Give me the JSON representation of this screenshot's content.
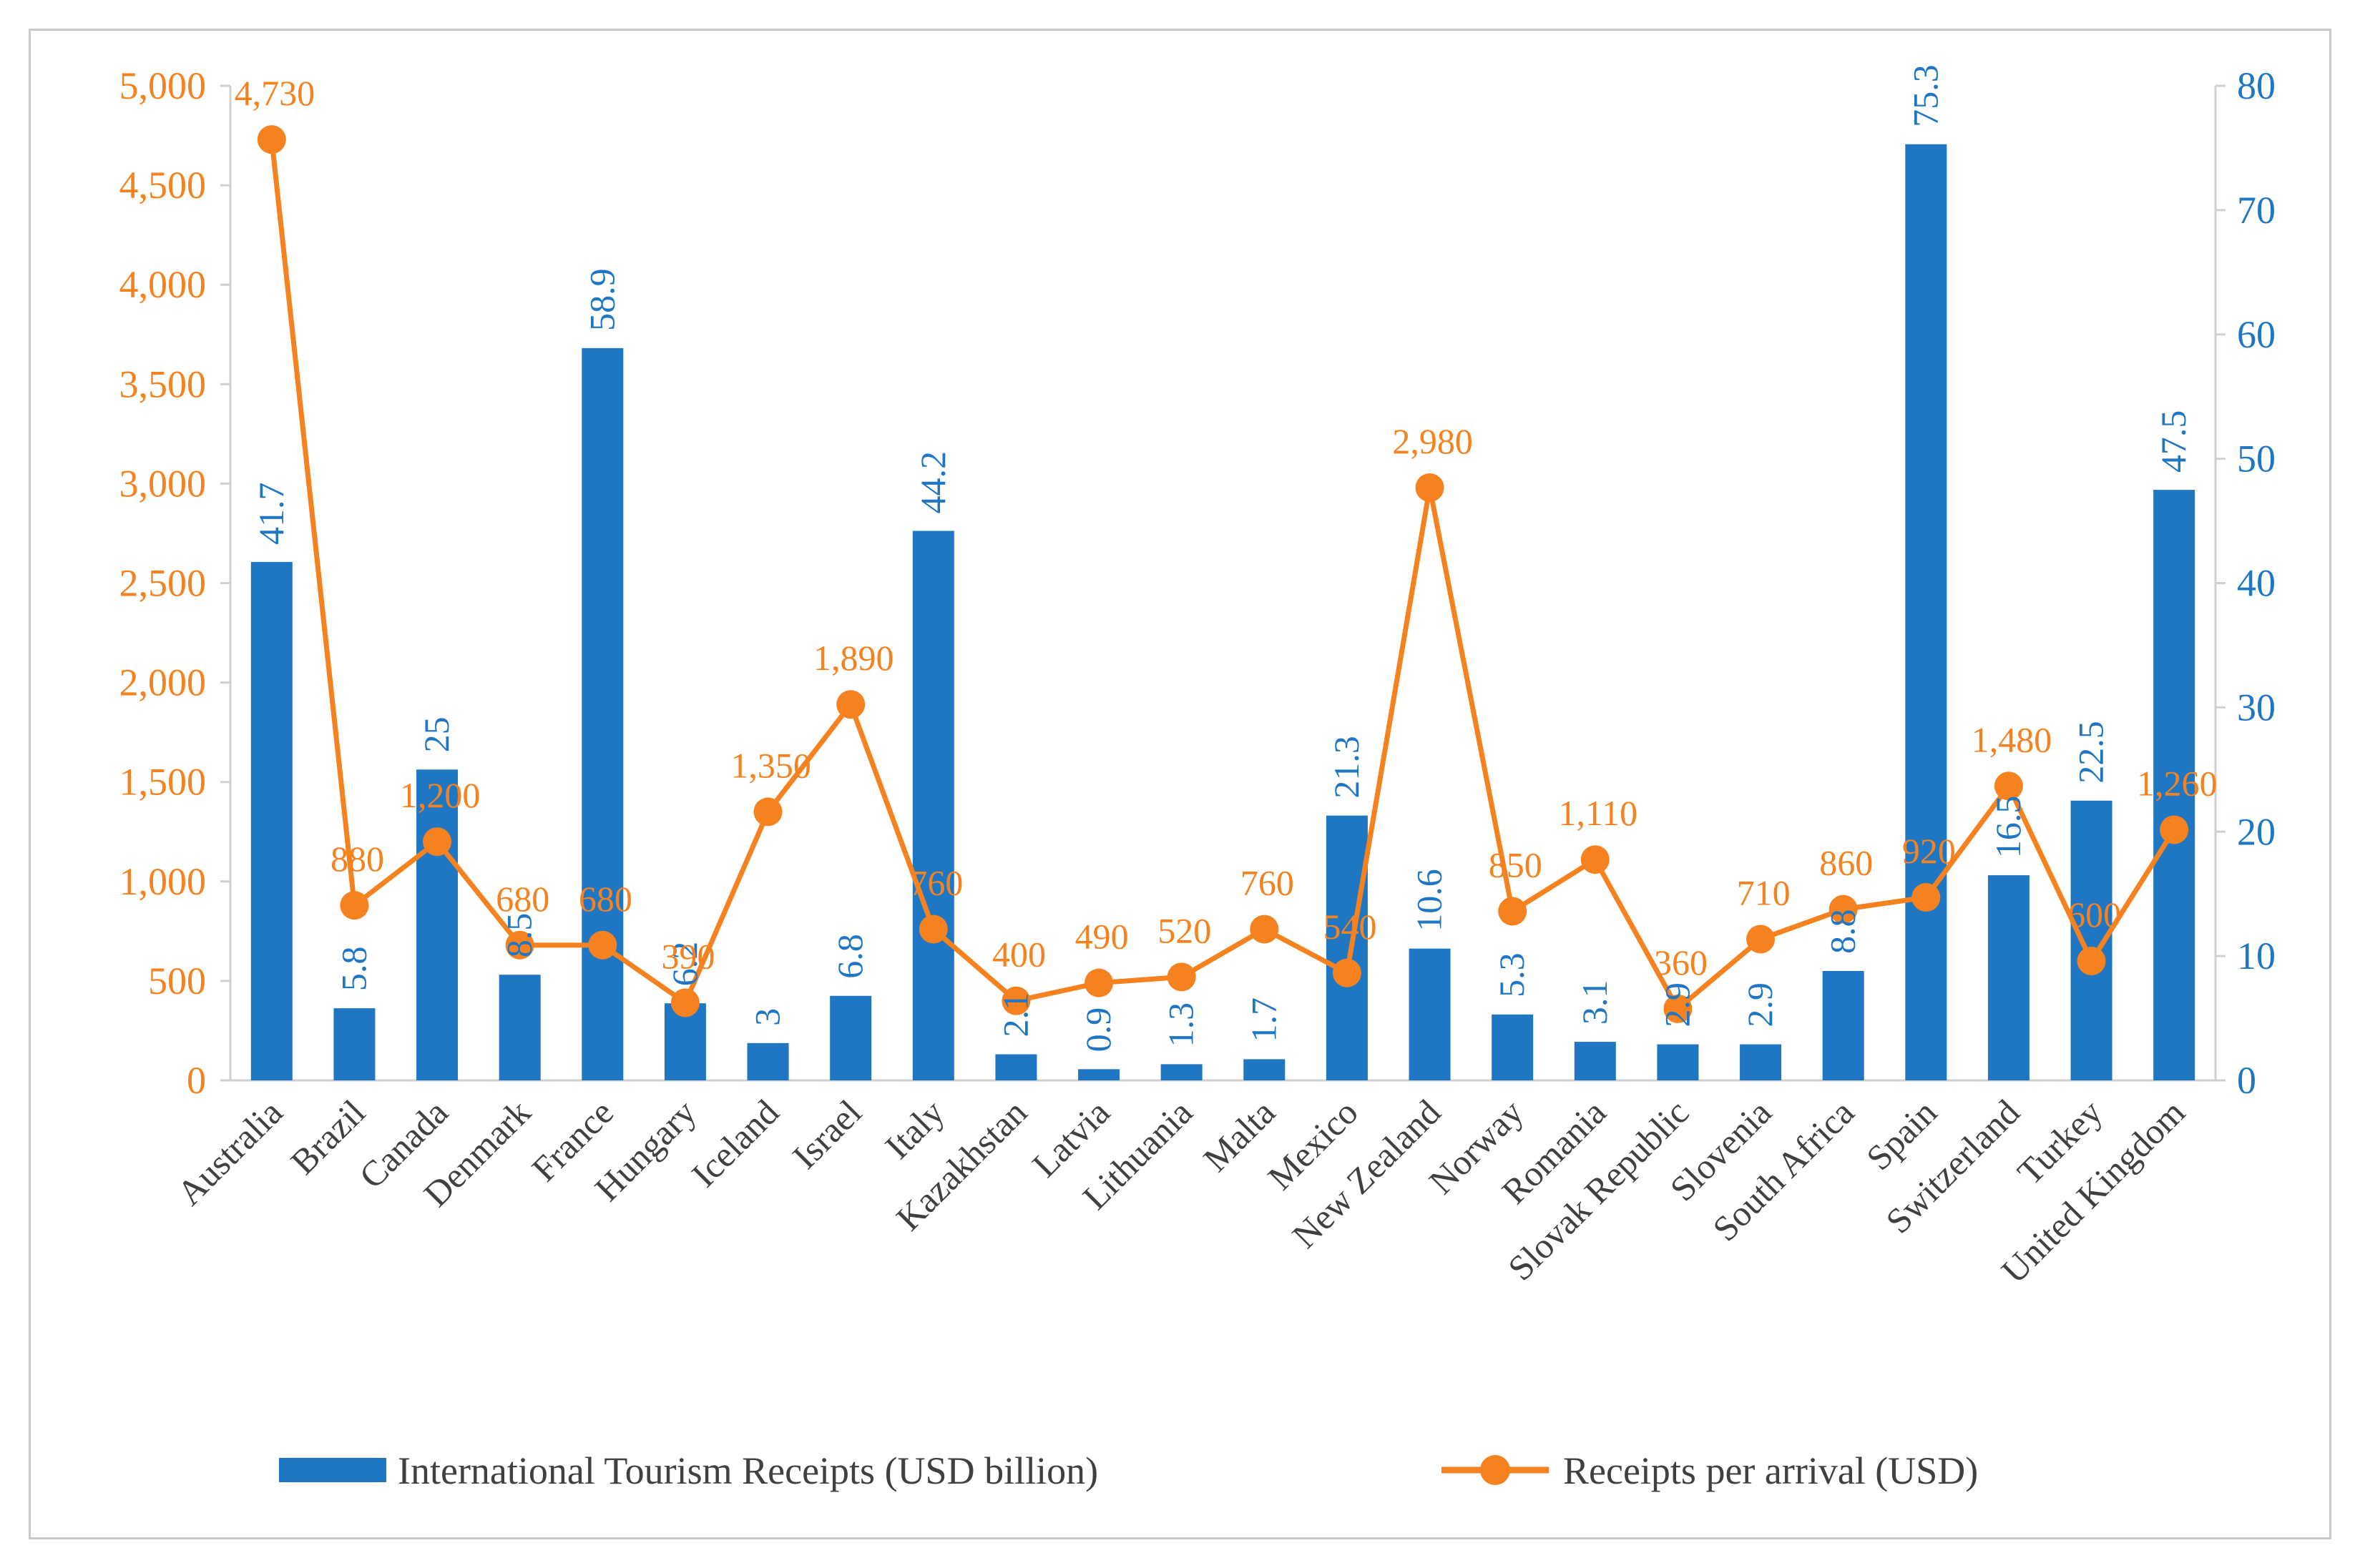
{
  "chart_data": {
    "type": "bar",
    "categories": [
      "Australia",
      "Brazil",
      "Canada",
      "Denmark",
      "France",
      "Hungary",
      "Iceland",
      "Israel",
      "Italy",
      "Kazakhstan",
      "Latvia",
      "Lithuania",
      "Malta",
      "Mexico",
      "New Zealand",
      "Norway",
      "Romania",
      "Slovak Republic",
      "Slovenia",
      "South Africa",
      "Spain",
      "Switzerland",
      "Turkey",
      "United Kingdom"
    ],
    "series": [
      {
        "name": "International Tourism Receipts (USD billion)",
        "type": "bar",
        "axis": "right",
        "color": "#1f77c4",
        "values": [
          41.7,
          5.8,
          25,
          8.5,
          58.9,
          6.2,
          3,
          6.8,
          44.2,
          2.1,
          0.9,
          1.3,
          1.7,
          21.3,
          10.6,
          5.3,
          3.1,
          2.9,
          2.9,
          8.8,
          75.3,
          16.5,
          22.5,
          47.5
        ],
        "labels": [
          "41.7",
          "5.8",
          "25",
          "8.5",
          "58.9",
          "6.2",
          "3",
          "6.8",
          "44.2",
          "2.1",
          "0.9",
          "1.3",
          "1.7",
          "21.3",
          "10.6",
          "5.3",
          "3.1",
          "2.9",
          "2.9",
          "8.8",
          "75.3",
          "16.5",
          "22.5",
          "47.5"
        ]
      },
      {
        "name": "Receipts per arrival (USD)",
        "type": "line",
        "axis": "left",
        "color": "#f5821f",
        "values": [
          4730,
          880,
          1200,
          680,
          680,
          390,
          1350,
          1890,
          760,
          400,
          490,
          520,
          760,
          540,
          2980,
          850,
          1110,
          360,
          710,
          860,
          920,
          1480,
          600,
          1260
        ],
        "labels": [
          "4,730",
          "880",
          "1,200",
          "680",
          "680",
          "390",
          "1,350",
          "1,890",
          "760",
          "400",
          "490",
          "520",
          "760",
          "540",
          "2,980",
          "850",
          "1,110",
          "360",
          "710",
          "860",
          "920",
          "1,480",
          "600",
          "1,260"
        ]
      }
    ],
    "left_axis": {
      "ylim": [
        0,
        5000
      ],
      "ticks": [
        "0",
        "500",
        "1,000",
        "1,500",
        "2,000",
        "2,500",
        "3,000",
        "3,500",
        "4,000",
        "4,500",
        "5,000"
      ],
      "color": "#f5821f"
    },
    "right_axis": {
      "ylim": [
        0,
        80
      ],
      "ticks": [
        "0",
        "10",
        "20",
        "30",
        "40",
        "50",
        "60",
        "70",
        "80"
      ],
      "color": "#1f77c4"
    },
    "title": "",
    "xlabel": "",
    "grid": false,
    "legend_position": "bottom"
  }
}
